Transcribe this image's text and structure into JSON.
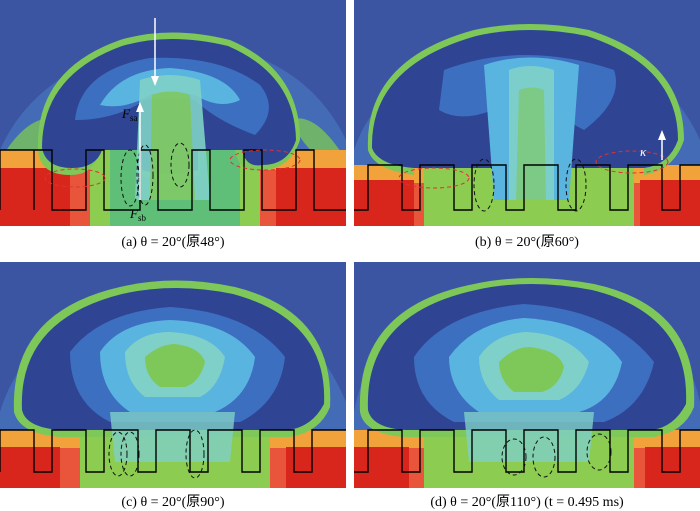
{
  "panels": [
    {
      "caption": "(a) θ = 20°(原48°)"
    },
    {
      "caption": "(b) θ = 20°(原60°)"
    },
    {
      "caption": "(c) θ = 20°(原90°)"
    },
    {
      "caption": "(d) θ = 20°(原110°) (t = 0.495 ms)"
    }
  ],
  "annotations": {
    "force_sa_symbol": "F",
    "force_sa_sub": "sa",
    "force_sb_symbol": "F",
    "force_sb_sub": "sb",
    "curvature_symbol": "κ"
  },
  "colors": {
    "background": "#3c55a3",
    "deep_blue": "#2f4593",
    "mid_blue": "#3d6fc0",
    "light_blue": "#5ab4e0",
    "cyan": "#7fd0c8",
    "green": "#7ec85a",
    "yellow": "#e8e04a",
    "orange": "#f08a2c",
    "red": "#e23a26"
  }
}
